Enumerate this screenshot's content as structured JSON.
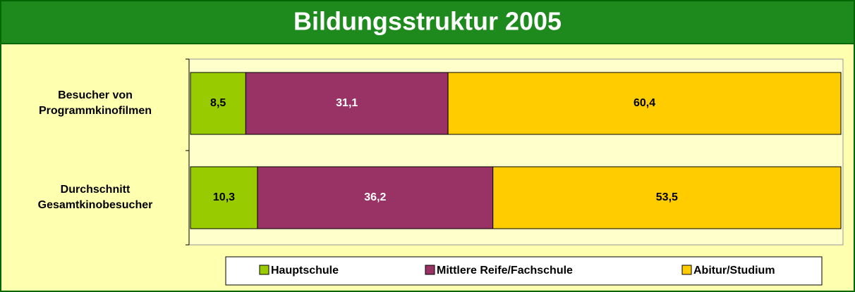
{
  "chart_data": {
    "type": "stacked-bar-horizontal",
    "title": "Bildungsstruktur 2005",
    "categories": [
      "Besucher von\nProgrammkinofilmen",
      "Durchschnitt\nGesamtkinobesucher"
    ],
    "series": [
      {
        "name": "Hauptschule",
        "color": "#99cc00",
        "label_color": "#000000",
        "values": [
          8.5,
          10.3
        ],
        "value_labels": [
          "8,5",
          "10,3"
        ]
      },
      {
        "name": "Mittlere Reife/Fachschule",
        "color": "#993366",
        "label_color": "#ffffff",
        "values": [
          31.1,
          36.2
        ],
        "value_labels": [
          "31,1",
          "36,2"
        ]
      },
      {
        "name": "Abitur/Studium",
        "color": "#ffcc00",
        "label_color": "#000000",
        "values": [
          60.4,
          53.5
        ],
        "value_labels": [
          "60,4",
          "53,5"
        ]
      }
    ],
    "xlim": [
      0,
      100
    ],
    "legend": "bottom"
  }
}
